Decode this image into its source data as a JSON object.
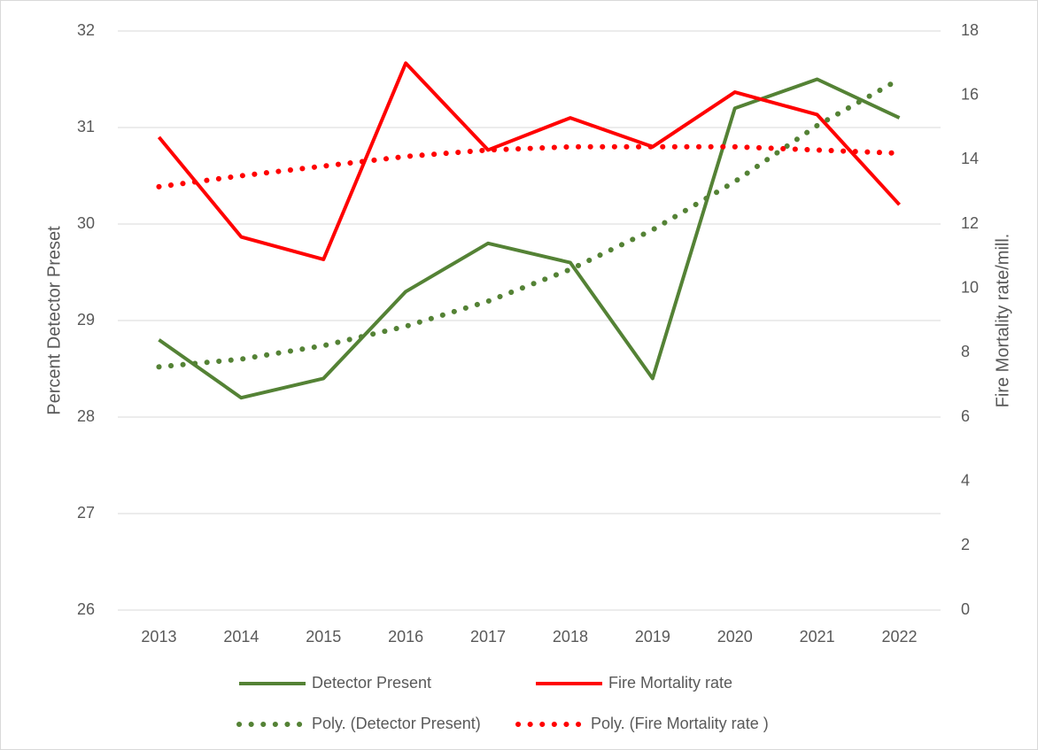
{
  "chart_data": {
    "type": "line",
    "ylabel": "Percent Detector Preset",
    "y2label": "Fire Mortality rate/mill.",
    "categories": [
      "2013",
      "2014",
      "2015",
      "2016",
      "2017",
      "2018",
      "2019",
      "2020",
      "2021",
      "2022"
    ],
    "ylim": [
      26,
      32
    ],
    "yticks": [
      26,
      27,
      28,
      29,
      30,
      31,
      32
    ],
    "y2lim": [
      0,
      18
    ],
    "y2ticks": [
      0,
      2,
      4,
      6,
      8,
      10,
      12,
      14,
      16,
      18
    ],
    "grid": true,
    "legend": "bottom",
    "series": [
      {
        "name": "Detector Present",
        "color": "#548235",
        "style": "solid",
        "values": [
          28.8,
          28.2,
          28.4,
          29.3,
          29.8,
          29.6,
          28.4,
          31.2,
          31.5,
          31.1
        ]
      },
      {
        "name": "Fire Mortality rate",
        "color": "#ff0000",
        "style": "solid",
        "axis": "y2",
        "values": [
          14.7,
          11.6,
          10.9,
          17.0,
          14.3,
          15.3,
          14.4,
          16.1,
          15.4,
          12.6
        ]
      },
      {
        "name": "Poly. (Detector Present)",
        "color": "#548235",
        "style": "dotted",
        "values": [
          28.52,
          28.6,
          28.74,
          28.94,
          29.2,
          29.53,
          29.94,
          30.44,
          31.02,
          31.5
        ]
      },
      {
        "name": "Poly. (Fire Mortality rate )",
        "color": "#ff0000",
        "style": "dotted",
        "axis": "y2",
        "values": [
          13.16,
          13.5,
          13.8,
          14.1,
          14.3,
          14.4,
          14.4,
          14.4,
          14.3,
          14.2
        ]
      }
    ]
  }
}
